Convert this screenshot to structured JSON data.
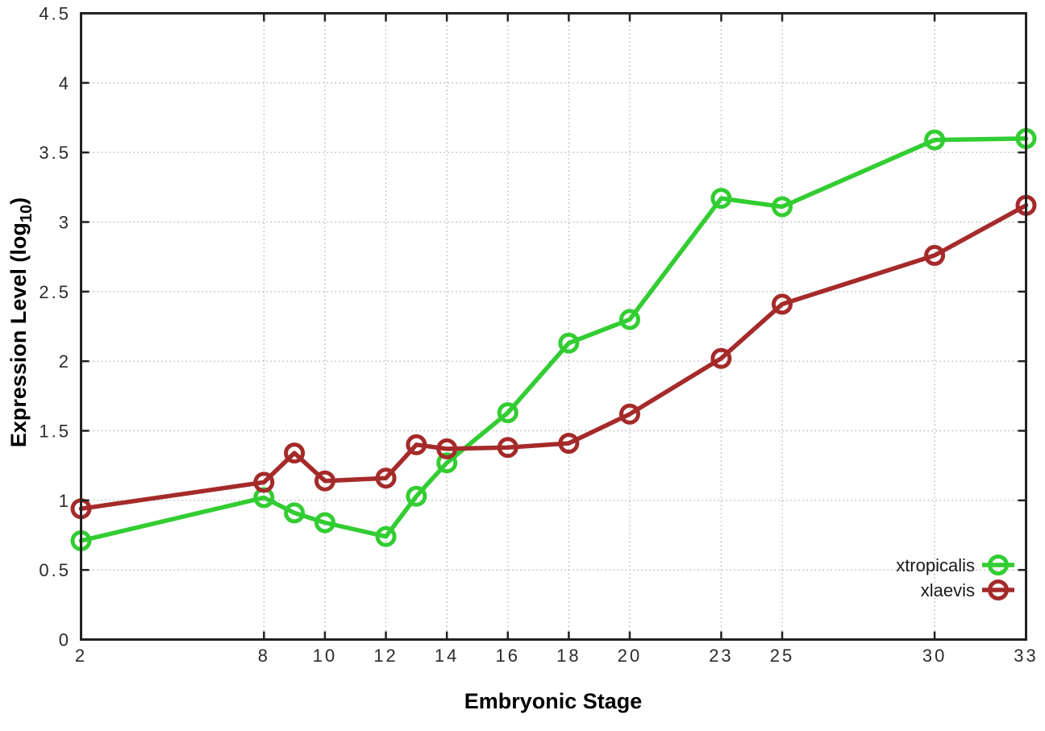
{
  "chart_data": {
    "type": "line",
    "title": "",
    "xlabel": "Embryonic Stage",
    "ylabel": "Expression Level (log10)",
    "ylabel_parts": [
      "Expression Level (log",
      "10",
      ")"
    ],
    "x": [
      2,
      8,
      9,
      10,
      12,
      13,
      14,
      16,
      18,
      20,
      23,
      25,
      30,
      33
    ],
    "series": [
      {
        "name": "xtropicalis",
        "color": "#32cd32",
        "values": [
          0.71,
          1.02,
          0.91,
          0.84,
          0.74,
          1.03,
          1.27,
          1.63,
          2.13,
          2.3,
          3.17,
          3.11,
          3.59,
          3.6
        ]
      },
      {
        "name": "xlaevis",
        "color": "#a52a2a",
        "values": [
          0.94,
          1.13,
          1.34,
          1.14,
          1.16,
          1.4,
          1.37,
          1.38,
          1.41,
          1.62,
          2.02,
          2.41,
          2.76,
          3.12
        ]
      }
    ],
    "xlim": [
      2,
      33
    ],
    "ylim": [
      0,
      4.5
    ],
    "xticks": [
      2,
      8,
      10,
      12,
      14,
      16,
      18,
      20,
      23,
      25,
      30,
      33
    ],
    "xtick_labels": [
      "2",
      "8",
      "10",
      "12",
      "14",
      "16",
      "18",
      "20",
      "23",
      "25",
      "30",
      "33"
    ],
    "yticks": [
      0,
      0.5,
      1,
      1.5,
      2,
      2.5,
      3,
      3.5,
      4,
      4.5
    ],
    "ytick_labels": [
      "0",
      "0.5",
      "1",
      "1.5",
      "2",
      "2.5",
      "3",
      "3.5",
      "4",
      "4.5"
    ],
    "grid": true,
    "grid_style": "dotted",
    "legend_position": "bottom-right",
    "marker": "open-circle",
    "colors": {
      "grid": "#b8b8b8",
      "border": "#222222",
      "tick_text": "#2b2b2b",
      "background": "#ffffff"
    }
  }
}
